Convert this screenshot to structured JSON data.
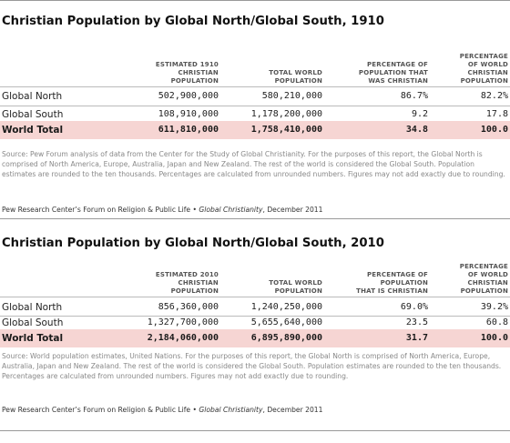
{
  "sections": [
    {
      "title": "Christian Population by Global North/Global South, 1910",
      "headers": {
        "col1": "ESTIMATED 1910\nCHRISTIAN\nPOPULATION",
        "col2": "TOTAL WORLD\nPOPULATION",
        "col3": "PERCENTAGE OF\nPOPULATION THAT\nWAS CHRISTIAN",
        "col4": "PERCENTAGE\nOF WORLD\nCHRISTIAN\nPOPULATION"
      },
      "rows": [
        {
          "label": "Global North",
          "c1": "502,900,000",
          "c2": "580,210,000",
          "c3": "86.7%",
          "c4": "82.2%"
        },
        {
          "label": "Global South",
          "c1": "108,910,000",
          "c2": "1,178,200,000",
          "c3": "9.2",
          "c4": "17.8"
        },
        {
          "label": "World Total",
          "c1": "611,810,000",
          "c2": "1,758,410,000",
          "c3": "34.8",
          "c4": "100.0"
        }
      ],
      "source": "Source: Pew Forum analysis of data from the Center for the Study of Global Christianity. For the purposes of this report, the Global North is comprised of North America, Europe, Australia, Japan and New Zealand. The rest of the world is considered the Global South. Population estimates are rounded to the ten thousands. Percentages are calculated from unrounded numbers. Figures may not add exactly due to rounding.",
      "credit_org": "Pew Research Center’s Forum on Religion & Public Life •",
      "credit_pub": "Global Christianity",
      "credit_date": ", December 2011"
    },
    {
      "title": "Christian Population by Global North/Global South, 2010",
      "headers": {
        "col1": "ESTIMATED 2010\nCHRISTIAN\nPOPULATION",
        "col2": "TOTAL WORLD\nPOPULATION",
        "col3": "PERCENTAGE OF\nPOPULATION\nTHAT IS CHRISTIAN",
        "col4": "PERCENTAGE\nOF WORLD\nCHRISTIAN\nPOPULATION"
      },
      "rows": [
        {
          "label": "Global North",
          "c1": "856,360,000",
          "c2": "1,240,250,000",
          "c3": "69.0%",
          "c4": "39.2%"
        },
        {
          "label": "Global South",
          "c1": "1,327,700,000",
          "c2": "5,655,640,000",
          "c3": "23.5",
          "c4": "60.8"
        },
        {
          "label": "World Total",
          "c1": "2,184,060,000",
          "c2": "6,895,890,000",
          "c3": "31.7",
          "c4": "100.0"
        }
      ],
      "source": "Source: World population estimates, United Nations. For the purposes of this report, the Global North is comprised of North America, Europe, Australia, Japan and New Zealand. The rest of the world is considered the Global South. Population estimates are rounded to the ten thousands. Percentages are calculated from unrounded numbers. Figures may not add exactly due to rounding.",
      "credit_org": "Pew Research Center’s Forum on Religion & Public Life •",
      "credit_pub": "Global Christianity",
      "credit_date": ", December 2011"
    }
  ]
}
